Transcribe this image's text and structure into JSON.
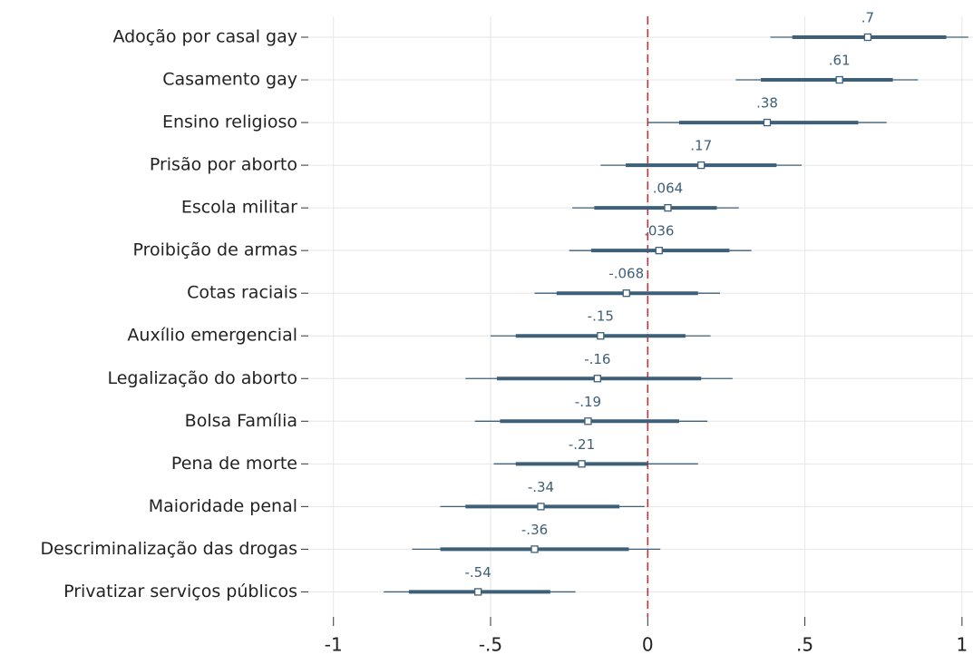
{
  "chart_data": {
    "type": "coefplot",
    "categories": [
      "Adoção por casal gay",
      "Casamento gay",
      "Ensino religioso",
      "Prisão por aborto",
      "Escola militar",
      "Proibição de armas",
      "Cotas raciais",
      "Auxílio emergencial",
      "Legalização do aborto",
      "Bolsa Família",
      "Pena de morte",
      "Maioridade penal",
      "Descriminalização das drogas",
      "Privatizar serviços públicos"
    ],
    "values": [
      0.7,
      0.61,
      0.38,
      0.17,
      0.064,
      0.036,
      -0.068,
      -0.15,
      -0.16,
      -0.19,
      -0.21,
      -0.34,
      -0.36,
      -0.54
    ],
    "value_labels": [
      ".7",
      ".61",
      ".38",
      ".17",
      ".064",
      ".036",
      "-.068",
      "-.15",
      "-.16",
      "-.19",
      "-.21",
      "-.34",
      "-.36",
      "-.54"
    ],
    "ci_thin": [
      [
        0.39,
        1.02
      ],
      [
        0.28,
        0.86
      ],
      [
        0.0,
        0.76
      ],
      [
        -0.15,
        0.49
      ],
      [
        -0.24,
        0.29
      ],
      [
        -0.25,
        0.33
      ],
      [
        -0.36,
        0.23
      ],
      [
        -0.5,
        0.2
      ],
      [
        -0.58,
        0.27
      ],
      [
        -0.55,
        0.19
      ],
      [
        -0.49,
        0.16
      ],
      [
        -0.66,
        -0.01
      ],
      [
        -0.75,
        0.04
      ],
      [
        -0.84,
        -0.23
      ]
    ],
    "ci_thick": [
      [
        0.46,
        0.95
      ],
      [
        0.36,
        0.78
      ],
      [
        0.1,
        0.67
      ],
      [
        -0.07,
        0.41
      ],
      [
        -0.17,
        0.22
      ],
      [
        -0.18,
        0.26
      ],
      [
        -0.29,
        0.16
      ],
      [
        -0.42,
        0.12
      ],
      [
        -0.48,
        0.17
      ],
      [
        -0.47,
        0.1
      ],
      [
        -0.42,
        0.0
      ],
      [
        -0.58,
        -0.09
      ],
      [
        -0.66,
        -0.06
      ],
      [
        -0.76,
        -0.31
      ]
    ],
    "color": "#3d5f78",
    "refline": 0,
    "refline_color": "#d62728",
    "xlim": [
      -1.08,
      1.035
    ],
    "xticks": [
      -1,
      {
        "value": -0.5,
        "label": "-.5"
      },
      0,
      {
        "value": 0.5,
        "label": ".5"
      },
      1
    ],
    "grid": true
  }
}
